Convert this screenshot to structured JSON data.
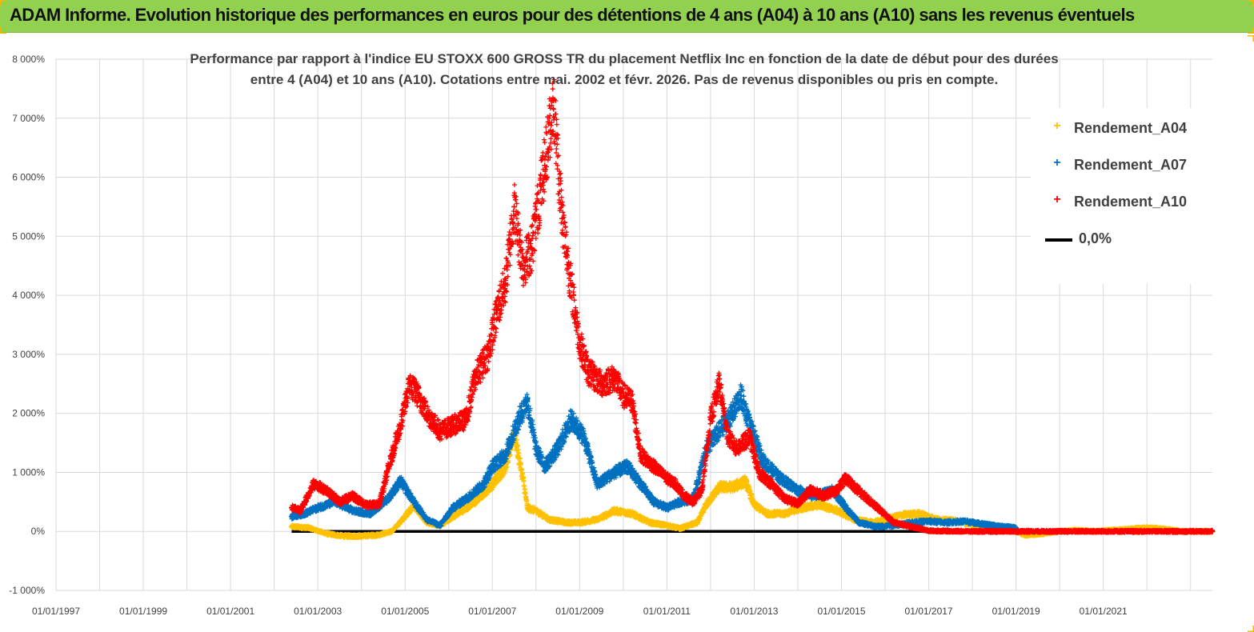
{
  "banner": {
    "title": "ADAM Informe. Evolution historique des performances en euros pour des détentions de 4 ans (A04) à 10 ans (A10) sans les revenus éventuels"
  },
  "colors": {
    "banner": "#92d050",
    "corner": "#f2b800",
    "a04": "#ffc000",
    "a07": "#0070c0",
    "a10": "#ff0000",
    "zero": "#000000",
    "grid": "#d9d9d9"
  },
  "chart_data": {
    "type": "scatter",
    "title_lines": [
      "Performance par rapport à l'indice EU STOXX 600 GROSS TR  du placement Netflix Inc en fonction de la date de début pour des durées",
      "entre 4 (A04) et 10 ans (A10). Cotations entre mai. 2002 et févr. 2026. Pas de revenus disponibles ou pris en compte."
    ],
    "xlabel": "",
    "ylabel": "",
    "xlim": [
      1997.0,
      2023.5
    ],
    "ylim": [
      -1000,
      8000
    ],
    "y_ticks": [
      {
        "value": 8000,
        "label": "8 000%"
      },
      {
        "value": 7000,
        "label": "7 000%"
      },
      {
        "value": 6000,
        "label": "6 000%"
      },
      {
        "value": 5000,
        "label": "5 000%"
      },
      {
        "value": 4000,
        "label": "4 000%"
      },
      {
        "value": 3000,
        "label": "3 000%"
      },
      {
        "value": 2000,
        "label": "2 000%"
      },
      {
        "value": 1000,
        "label": "1 000%"
      },
      {
        "value": 0,
        "label": "0%"
      },
      {
        "value": -1000,
        "label": "-1 000%"
      }
    ],
    "x_ticks": [
      {
        "value": 1997.0,
        "label": "01/01/1997"
      },
      {
        "value": 1999.0,
        "label": "01/01/1999"
      },
      {
        "value": 2001.0,
        "label": "01/01/2001"
      },
      {
        "value": 2003.0,
        "label": "01/01/2003"
      },
      {
        "value": 2005.0,
        "label": "01/01/2005"
      },
      {
        "value": 2007.0,
        "label": "01/01/2007"
      },
      {
        "value": 2009.0,
        "label": "01/01/2009"
      },
      {
        "value": 2011.0,
        "label": "01/01/2011"
      },
      {
        "value": 2013.0,
        "label": "01/01/2013"
      },
      {
        "value": 2015.0,
        "label": "01/01/2015"
      },
      {
        "value": 2017.0,
        "label": "01/01/2017"
      },
      {
        "value": 2019.0,
        "label": "01/01/2019"
      },
      {
        "value": 2021.0,
        "label": "01/01/2021"
      }
    ],
    "grid": true,
    "legend_position": "top-right",
    "series": [
      {
        "name": "Rendement_A04",
        "marker": "+",
        "x": [
          2002.4,
          2002.8,
          2003.2,
          2003.6,
          2004.0,
          2004.4,
          2004.7,
          2005.0,
          2005.2,
          2005.5,
          2005.8,
          2006.2,
          2006.6,
          2007.0,
          2007.3,
          2007.5,
          2007.7,
          2007.8,
          2008.0,
          2008.3,
          2008.7,
          2009.0,
          2009.4,
          2009.8,
          2010.2,
          2010.6,
          2011.0,
          2011.3,
          2011.7,
          2011.9,
          2012.2,
          2012.5,
          2012.8,
          2013.0,
          2013.3,
          2013.7,
          2014.1,
          2014.5,
          2014.9,
          2015.3,
          2015.7,
          2016.0,
          2016.4,
          2016.8,
          2017.2,
          2017.6,
          2018.0,
          2018.4,
          2018.8,
          2019.2,
          2019.6,
          2020.0,
          2020.4,
          2020.8,
          2021.2,
          2021.6,
          2022.0,
          2022.4,
          2022.8,
          2023.2,
          2023.5
        ],
        "values": [
          80,
          60,
          -40,
          -80,
          -80,
          -60,
          0,
          250,
          450,
          150,
          100,
          300,
          500,
          800,
          1100,
          1650,
          900,
          400,
          350,
          200,
          150,
          150,
          200,
          350,
          300,
          150,
          100,
          50,
          150,
          450,
          750,
          750,
          850,
          450,
          300,
          300,
          400,
          450,
          350,
          200,
          150,
          200,
          280,
          300,
          200,
          180,
          120,
          80,
          50,
          -60,
          -40,
          0,
          20,
          0,
          20,
          40,
          60,
          40,
          0,
          0,
          0
        ]
      },
      {
        "name": "Rendement_A07",
        "marker": "+",
        "x": [
          2002.4,
          2002.7,
          2003.0,
          2003.4,
          2003.8,
          2004.2,
          2004.6,
          2004.9,
          2005.2,
          2005.5,
          2005.8,
          2006.1,
          2006.4,
          2006.8,
          2007.0,
          2007.3,
          2007.6,
          2007.8,
          2008.0,
          2008.2,
          2008.5,
          2008.8,
          2009.1,
          2009.4,
          2009.8,
          2010.1,
          2010.4,
          2010.7,
          2011.0,
          2011.3,
          2011.6,
          2011.9,
          2012.2,
          2012.5,
          2012.7,
          2012.9,
          2013.2,
          2013.6,
          2014.0,
          2014.4,
          2014.8,
          2015.1,
          2015.4,
          2015.8,
          2016.2,
          2016.6,
          2017.0,
          2017.4,
          2017.8,
          2018.2,
          2018.6,
          2019.0
        ],
        "values": [
          250,
          300,
          400,
          500,
          350,
          300,
          550,
          850,
          500,
          200,
          100,
          400,
          550,
          800,
          1100,
          1300,
          1900,
          2200,
          1400,
          1100,
          1400,
          1900,
          1600,
          800,
          1000,
          1100,
          800,
          500,
          400,
          500,
          550,
          1400,
          1700,
          2000,
          2300,
          1800,
          1200,
          900,
          700,
          600,
          700,
          400,
          150,
          80,
          100,
          150,
          170,
          150,
          170,
          130,
          90,
          60
        ]
      },
      {
        "name": "Rendement_A10",
        "marker": "+",
        "x": [
          2002.4,
          2002.6,
          2002.9,
          2003.2,
          2003.5,
          2003.8,
          2004.1,
          2004.4,
          2004.7,
          2004.9,
          2005.1,
          2005.3,
          2005.5,
          2005.8,
          2006.1,
          2006.4,
          2006.6,
          2006.9,
          2007.1,
          2007.3,
          2007.5,
          2007.7,
          2007.9,
          2008.0,
          2008.2,
          2008.4,
          2008.6,
          2008.8,
          2009.0,
          2009.2,
          2009.5,
          2009.8,
          2010.0,
          2010.2,
          2010.4,
          2010.7,
          2011.0,
          2011.2,
          2011.4,
          2011.6,
          2011.8,
          2012.0,
          2012.2,
          2012.4,
          2012.6,
          2012.9,
          2013.1,
          2013.4,
          2013.7,
          2014.0,
          2014.3,
          2014.6,
          2014.9,
          2015.1,
          2015.3,
          2015.6,
          2015.9,
          2016.2,
          2017.0,
          2018.0,
          2019.0,
          2020.0,
          2021.0,
          2022.0,
          2023.0,
          2023.5
        ],
        "values": [
          400,
          350,
          800,
          700,
          500,
          600,
          450,
          450,
          1300,
          1800,
          2500,
          2300,
          2000,
          1700,
          1800,
          1900,
          2600,
          3000,
          3700,
          4200,
          5500,
          4500,
          4800,
          5300,
          6200,
          7300,
          5300,
          4200,
          3200,
          2700,
          2500,
          2600,
          2300,
          2200,
          1300,
          1100,
          900,
          800,
          600,
          500,
          700,
          1900,
          2500,
          1600,
          1400,
          1600,
          1000,
          800,
          550,
          480,
          700,
          600,
          700,
          900,
          750,
          550,
          350,
          150,
          10,
          0,
          0,
          0,
          0,
          0,
          0,
          0
        ]
      },
      {
        "name": "0,0%",
        "marker": "line",
        "x": [
          2002.4,
          2023.5
        ],
        "values": [
          0,
          0
        ]
      }
    ]
  }
}
